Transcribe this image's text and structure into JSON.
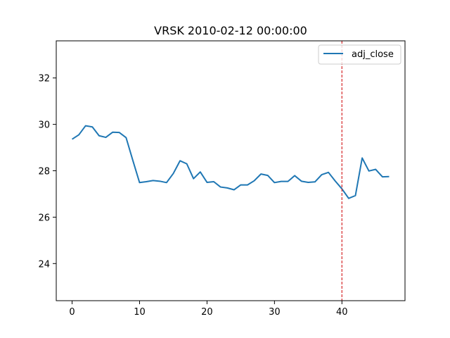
{
  "chart_data": {
    "type": "line",
    "title": "VRSK 2010-02-12 00:00:00",
    "xlabel": "",
    "ylabel": "",
    "xlim": [
      -2.35,
      49.35
    ],
    "ylim": [
      22.4,
      33.6
    ],
    "x_ticks": [
      0,
      10,
      20,
      30,
      40
    ],
    "y_ticks": [
      24,
      26,
      28,
      30,
      32
    ],
    "grid": false,
    "legend": {
      "location": "top-right",
      "entries": [
        "adj_close"
      ]
    },
    "colors": {
      "series": "#1f77b4",
      "marker_line": "#d62728"
    },
    "vertical_line": {
      "x": 40,
      "style": "dashed"
    },
    "series": [
      {
        "name": "adj_close",
        "x": [
          0,
          1,
          2,
          3,
          4,
          5,
          6,
          7,
          8,
          9,
          10,
          11,
          12,
          13,
          14,
          15,
          16,
          17,
          18,
          19,
          20,
          21,
          22,
          23,
          24,
          25,
          26,
          27,
          28,
          29,
          30,
          31,
          32,
          33,
          34,
          35,
          36,
          37,
          38,
          39,
          40,
          41,
          42,
          43,
          44,
          45,
          46,
          47
        ],
        "values": [
          29.36,
          29.55,
          29.94,
          29.89,
          29.51,
          29.44,
          29.66,
          29.65,
          29.43,
          28.45,
          27.49,
          27.53,
          27.58,
          27.55,
          27.49,
          27.88,
          28.43,
          28.3,
          27.66,
          27.95,
          27.5,
          27.53,
          27.3,
          27.26,
          27.18,
          27.39,
          27.39,
          27.57,
          27.86,
          27.8,
          27.49,
          27.54,
          27.54,
          27.79,
          27.55,
          27.5,
          27.52,
          27.83,
          27.93,
          27.56,
          27.22,
          26.81,
          26.93,
          28.55,
          27.99,
          28.06,
          27.74,
          27.75
        ]
      }
    ]
  }
}
